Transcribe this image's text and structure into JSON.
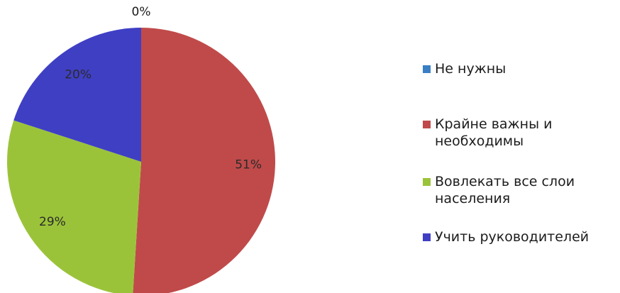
{
  "chart_data": {
    "type": "pie",
    "title": "",
    "categories": [
      "Не нужны",
      "Крайне важны и необходимы",
      "Вовлекать все слои населения",
      "Учить руководителей"
    ],
    "values": [
      0,
      51,
      29,
      20
    ],
    "labels": [
      "0%",
      "51%",
      "29%",
      "20%"
    ],
    "colors": [
      "#3a7fc4",
      "#c04a4a",
      "#9bc33a",
      "#3f3fc4"
    ],
    "legend_position": "right",
    "start_angle_deg": 0,
    "direction": "clockwise"
  }
}
